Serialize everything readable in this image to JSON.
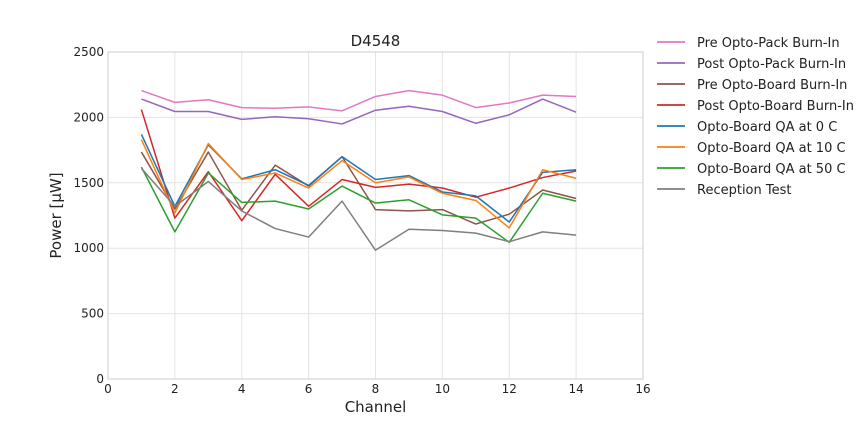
{
  "chart_data": {
    "type": "line",
    "title": "D4548",
    "xlabel": "Channel",
    "ylabel": "Power [μW]",
    "xlim": [
      0,
      16
    ],
    "ylim": [
      0,
      2500
    ],
    "xticks": [
      0,
      2,
      4,
      6,
      8,
      10,
      12,
      14,
      16
    ],
    "yticks": [
      0,
      500,
      1000,
      1500,
      2000,
      2500
    ],
    "grid": true,
    "legend_position": "outside-right",
    "x": [
      1,
      2,
      3,
      4,
      5,
      6,
      7,
      8,
      9,
      10,
      11,
      12,
      13,
      14
    ],
    "series": [
      {
        "name": "Pre Opto-Pack Burn-In",
        "color": "#e377c2",
        "values": [
          2205,
          2115,
          2135,
          2075,
          2070,
          2080,
          2050,
          2160,
          2205,
          2170,
          2075,
          2110,
          2170,
          2160
        ]
      },
      {
        "name": "Post Opto-Pack Burn-In",
        "color": "#9467bd",
        "values": [
          2140,
          2045,
          2045,
          1985,
          2005,
          1990,
          1950,
          2055,
          2085,
          2045,
          1955,
          2020,
          2140,
          2040
        ]
      },
      {
        "name": "Pre Opto-Board Burn-In",
        "color": "#8c564b",
        "values": [
          1735,
          1300,
          1735,
          1290,
          1635,
          1475,
          1700,
          1295,
          1285,
          1295,
          1185,
          1260,
          1445,
          1380
        ]
      },
      {
        "name": "Post Opto-Board Burn-In",
        "color": "#d62728",
        "values": [
          2060,
          1230,
          1585,
          1210,
          1565,
          1320,
          1525,
          1465,
          1490,
          1460,
          1390,
          1460,
          1540,
          1590
        ]
      },
      {
        "name": "Opto-Board QA at 0 C",
        "color": "#1f77b4",
        "values": [
          1870,
          1320,
          1790,
          1530,
          1600,
          1480,
          1700,
          1525,
          1555,
          1430,
          1400,
          1200,
          1580,
          1600
        ]
      },
      {
        "name": "Opto-Board QA at 10 C",
        "color": "#ff7f0e",
        "values": [
          1830,
          1270,
          1800,
          1525,
          1575,
          1460,
          1670,
          1500,
          1545,
          1420,
          1365,
          1155,
          1600,
          1535
        ]
      },
      {
        "name": "Opto-Board QA at 50 C",
        "color": "#2ca02c",
        "values": [
          1620,
          1125,
          1575,
          1350,
          1360,
          1300,
          1475,
          1345,
          1370,
          1255,
          1230,
          1045,
          1420,
          1360
        ]
      },
      {
        "name": "Reception Test",
        "color": "#7f7f7f",
        "values": [
          1610,
          1320,
          1510,
          1285,
          1150,
          1085,
          1360,
          985,
          1145,
          1135,
          1115,
          1050,
          1125,
          1100
        ]
      }
    ]
  }
}
